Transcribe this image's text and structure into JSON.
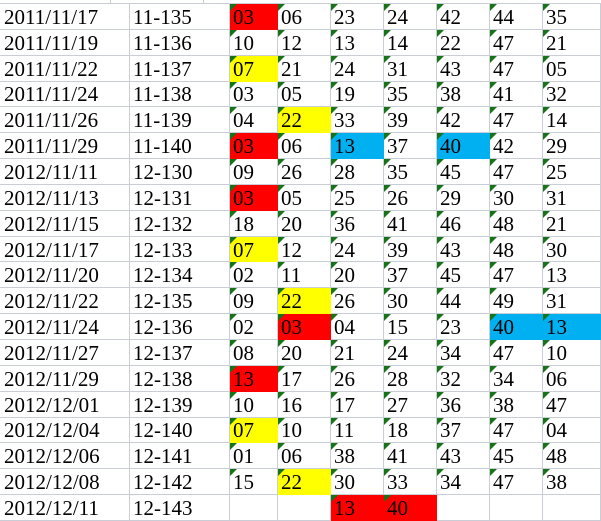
{
  "colors": {
    "red": "#FF0000",
    "yellow": "#FFFF00",
    "blue": "#00B0F0",
    "triangle": "#177317",
    "gridline": "#C9CED6"
  },
  "grid": {
    "rows": [
      {
        "date": "2011/11/17",
        "code": "11-135",
        "cells": [
          {
            "v": "03",
            "bg": "red"
          },
          {
            "v": "06"
          },
          {
            "v": "23"
          },
          {
            "v": "24"
          },
          {
            "v": "42"
          },
          {
            "v": "44"
          },
          {
            "v": "35"
          }
        ]
      },
      {
        "date": "2011/11/19",
        "code": "11-136",
        "cells": [
          {
            "v": "10"
          },
          {
            "v": "12"
          },
          {
            "v": "13"
          },
          {
            "v": "14"
          },
          {
            "v": "22"
          },
          {
            "v": "47"
          },
          {
            "v": "21"
          }
        ]
      },
      {
        "date": "2011/11/22",
        "code": "11-137",
        "cells": [
          {
            "v": "07",
            "bg": "yellow"
          },
          {
            "v": "21"
          },
          {
            "v": "24"
          },
          {
            "v": "31"
          },
          {
            "v": "43"
          },
          {
            "v": "47"
          },
          {
            "v": "05"
          }
        ]
      },
      {
        "date": "2011/11/24",
        "code": "11-138",
        "cells": [
          {
            "v": "03"
          },
          {
            "v": "05"
          },
          {
            "v": "19"
          },
          {
            "v": "35"
          },
          {
            "v": "38"
          },
          {
            "v": "41"
          },
          {
            "v": "32"
          }
        ]
      },
      {
        "date": "2011/11/26",
        "code": "11-139",
        "cells": [
          {
            "v": "04"
          },
          {
            "v": "22",
            "bg": "yellow"
          },
          {
            "v": "33"
          },
          {
            "v": "39"
          },
          {
            "v": "42"
          },
          {
            "v": "47"
          },
          {
            "v": "14"
          }
        ]
      },
      {
        "date": "2011/11/29",
        "code": "11-140",
        "cells": [
          {
            "v": "03",
            "bg": "red"
          },
          {
            "v": "06"
          },
          {
            "v": "13",
            "bg": "blue"
          },
          {
            "v": "37"
          },
          {
            "v": "40",
            "bg": "blue"
          },
          {
            "v": "42"
          },
          {
            "v": "29"
          }
        ]
      },
      {
        "date": "2012/11/11",
        "code": "12-130",
        "cells": [
          {
            "v": "09"
          },
          {
            "v": "26"
          },
          {
            "v": "28"
          },
          {
            "v": "35"
          },
          {
            "v": "45"
          },
          {
            "v": "47"
          },
          {
            "v": "25"
          }
        ]
      },
      {
        "date": "2012/11/13",
        "code": "12-131",
        "cells": [
          {
            "v": "03",
            "bg": "red"
          },
          {
            "v": "05"
          },
          {
            "v": "25"
          },
          {
            "v": "26"
          },
          {
            "v": "29"
          },
          {
            "v": "30"
          },
          {
            "v": "31"
          }
        ]
      },
      {
        "date": "2012/11/15",
        "code": "12-132",
        "cells": [
          {
            "v": "18"
          },
          {
            "v": "20"
          },
          {
            "v": "36"
          },
          {
            "v": "41"
          },
          {
            "v": "46"
          },
          {
            "v": "48"
          },
          {
            "v": "21"
          }
        ]
      },
      {
        "date": "2012/11/17",
        "code": "12-133",
        "cells": [
          {
            "v": "07",
            "bg": "yellow"
          },
          {
            "v": "12"
          },
          {
            "v": "24"
          },
          {
            "v": "39"
          },
          {
            "v": "43"
          },
          {
            "v": "48"
          },
          {
            "v": "30"
          }
        ]
      },
      {
        "date": "2012/11/20",
        "code": "12-134",
        "cells": [
          {
            "v": "02"
          },
          {
            "v": "11"
          },
          {
            "v": "20"
          },
          {
            "v": "37"
          },
          {
            "v": "45"
          },
          {
            "v": "47"
          },
          {
            "v": "13"
          }
        ]
      },
      {
        "date": "2012/11/22",
        "code": "12-135",
        "cells": [
          {
            "v": "09"
          },
          {
            "v": "22",
            "bg": "yellow"
          },
          {
            "v": "26"
          },
          {
            "v": "30"
          },
          {
            "v": "44"
          },
          {
            "v": "49"
          },
          {
            "v": "31"
          }
        ]
      },
      {
        "date": "2012/11/24",
        "code": "12-136",
        "cells": [
          {
            "v": "02"
          },
          {
            "v": "03",
            "bg": "red"
          },
          {
            "v": "04"
          },
          {
            "v": "15"
          },
          {
            "v": "23"
          },
          {
            "v": "40",
            "bg": "blue"
          },
          {
            "v": "13",
            "bg": "blue"
          }
        ]
      },
      {
        "date": "2012/11/27",
        "code": "12-137",
        "cells": [
          {
            "v": "08"
          },
          {
            "v": "20"
          },
          {
            "v": "21"
          },
          {
            "v": "24"
          },
          {
            "v": "34"
          },
          {
            "v": "47"
          },
          {
            "v": "10"
          }
        ]
      },
      {
        "date": "2012/11/29",
        "code": "12-138",
        "cells": [
          {
            "v": "13",
            "bg": "red"
          },
          {
            "v": "17"
          },
          {
            "v": "26"
          },
          {
            "v": "28"
          },
          {
            "v": "32"
          },
          {
            "v": "34"
          },
          {
            "v": "06"
          }
        ]
      },
      {
        "date": "2012/12/01",
        "code": "12-139",
        "cells": [
          {
            "v": "10"
          },
          {
            "v": "16"
          },
          {
            "v": "17"
          },
          {
            "v": "27"
          },
          {
            "v": "36"
          },
          {
            "v": "38"
          },
          {
            "v": "47"
          }
        ]
      },
      {
        "date": "2012/12/04",
        "code": "12-140",
        "cells": [
          {
            "v": "07",
            "bg": "yellow"
          },
          {
            "v": "10"
          },
          {
            "v": "11"
          },
          {
            "v": "18"
          },
          {
            "v": "37"
          },
          {
            "v": "47"
          },
          {
            "v": "04"
          }
        ]
      },
      {
        "date": "2012/12/06",
        "code": "12-141",
        "cells": [
          {
            "v": "01"
          },
          {
            "v": "06"
          },
          {
            "v": "38"
          },
          {
            "v": "41"
          },
          {
            "v": "43"
          },
          {
            "v": "45"
          },
          {
            "v": "48"
          }
        ]
      },
      {
        "date": "2012/12/08",
        "code": "12-142",
        "cells": [
          {
            "v": "15"
          },
          {
            "v": "22",
            "bg": "yellow"
          },
          {
            "v": "30"
          },
          {
            "v": "33"
          },
          {
            "v": "34"
          },
          {
            "v": "47"
          },
          {
            "v": "38"
          }
        ]
      },
      {
        "date": "2012/12/11",
        "code": "12-143",
        "cells": [
          {
            "v": ""
          },
          {
            "v": ""
          },
          {
            "v": "13",
            "bg": "red"
          },
          {
            "v": "40",
            "bg": "red"
          },
          {
            "v": ""
          },
          {
            "v": ""
          },
          {
            "v": ""
          }
        ]
      }
    ]
  }
}
